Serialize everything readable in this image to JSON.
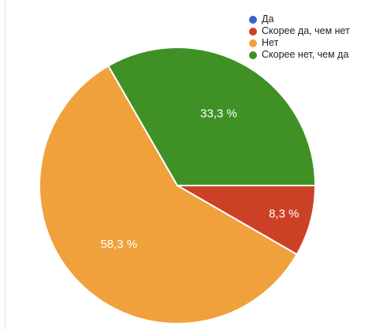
{
  "chart_data": {
    "type": "pie",
    "title": "",
    "start_angle_deg": 0,
    "direction": "clockwise",
    "legend_position": "top-right",
    "slices": [
      {
        "label": "Да",
        "value": 0.0,
        "display": "",
        "color": "#3366cc"
      },
      {
        "label": "Скорее да, чем нет",
        "value": 8.3,
        "display": "8,3 %",
        "color": "#cc4125"
      },
      {
        "label": "Нет",
        "value": 58.3,
        "display": "58,3 %",
        "color": "#f0a13c"
      },
      {
        "label": "Скорее нет, чем да",
        "value": 33.3,
        "display": "33,3 %",
        "color": "#3f9126"
      }
    ]
  }
}
